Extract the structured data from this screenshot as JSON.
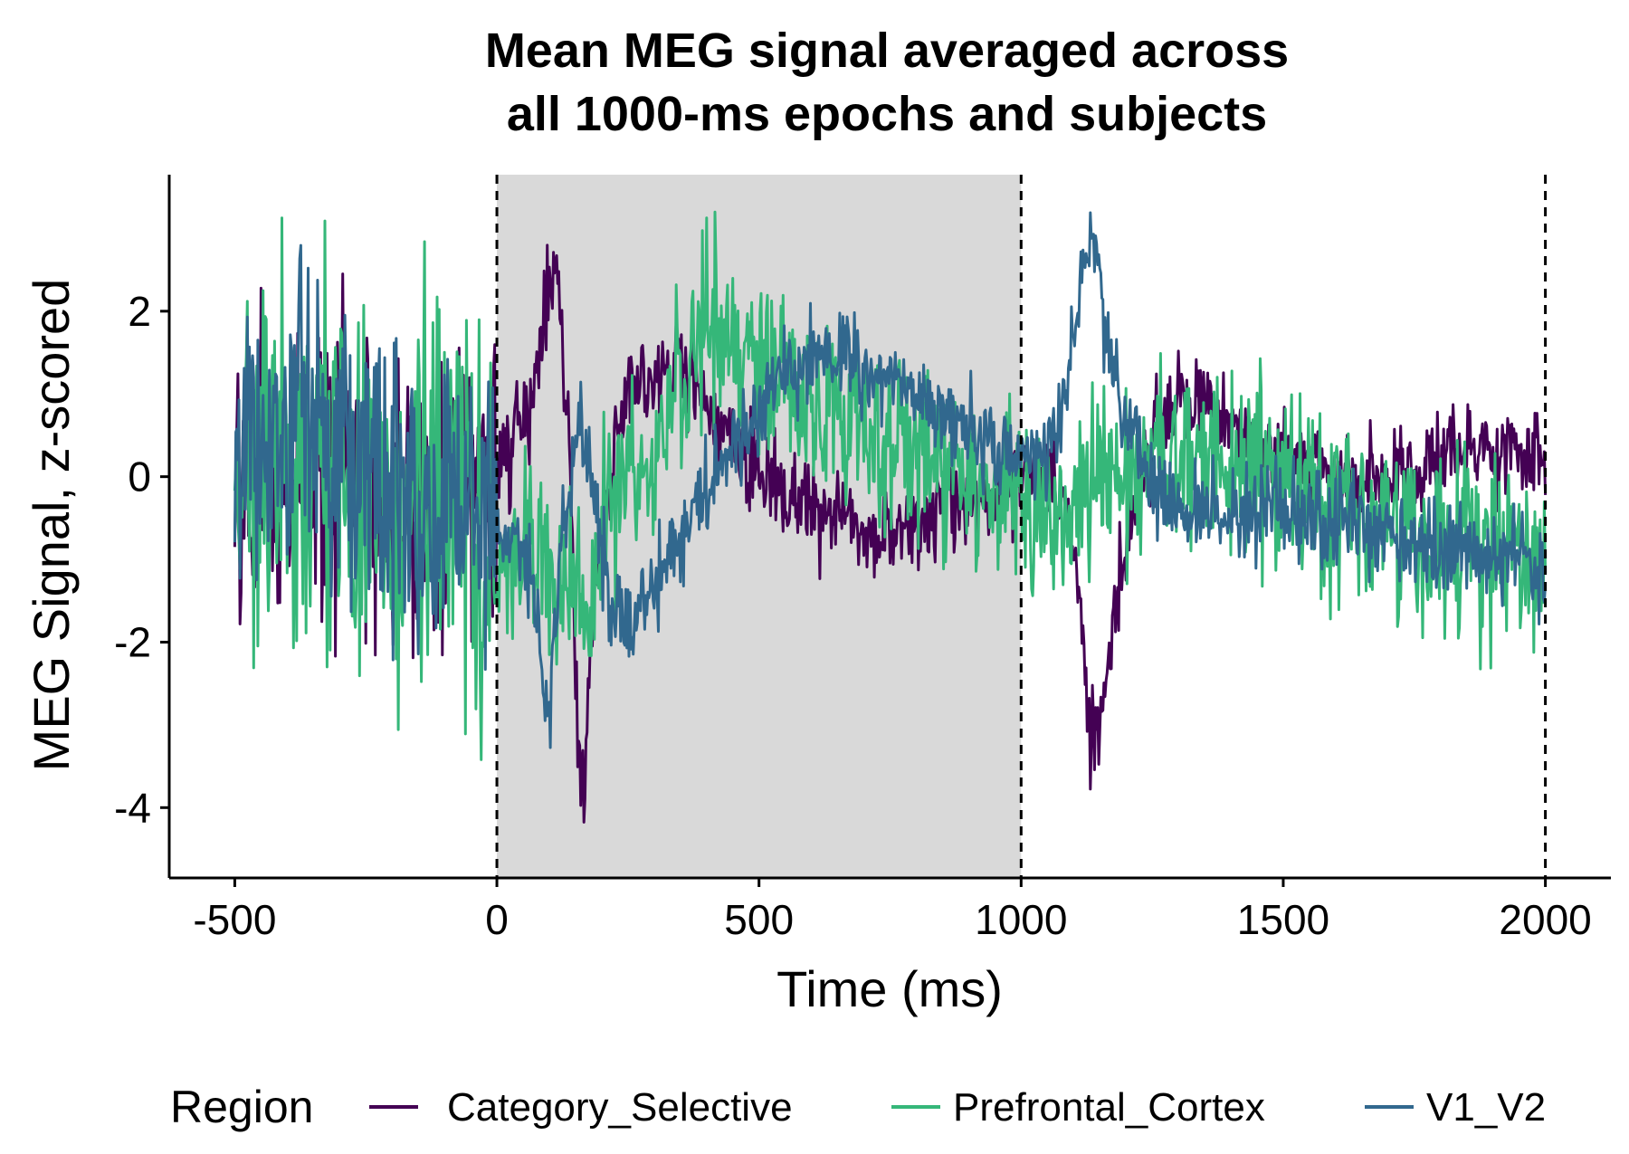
{
  "chart_data": {
    "type": "line",
    "title_lines": [
      "Mean MEG signal averaged across",
      "all 1000-ms epochs and subjects"
    ],
    "xlabel": "Time (ms)",
    "ylabel": "MEG Signal, z-scored",
    "xlim": [
      -625,
      2125
    ],
    "ylim": [
      -4.85,
      3.65
    ],
    "x_ticks": [
      -500,
      0,
      500,
      1000,
      1500,
      2000
    ],
    "x_tick_labels": [
      "-500",
      "0",
      "500",
      "1000",
      "1500",
      "2000"
    ],
    "y_ticks": [
      -4,
      -2,
      0,
      2
    ],
    "y_tick_labels": [
      "-4",
      "-2",
      "0",
      "2"
    ],
    "shaded_region": {
      "x": [
        0,
        1000
      ],
      "color": "#d9d9d9"
    },
    "vlines": [
      0,
      1000,
      2000
    ],
    "grid": false,
    "legend": {
      "title": "Region",
      "position": "bottom",
      "entries": [
        "Category_Selective",
        "Prefrontal_Cortex",
        "V1_V2"
      ]
    },
    "series": [
      {
        "name": "Category_Selective",
        "color": "#440154",
        "noise": 0.28,
        "anchors": [
          [
            -500,
            -0.1
          ],
          [
            -400,
            0.2
          ],
          [
            -200,
            -0.3
          ],
          [
            -100,
            -0.5
          ],
          [
            -10,
            0.1
          ],
          [
            20,
            0.2
          ],
          [
            60,
            0.8
          ],
          [
            100,
            2.2
          ],
          [
            115,
            2.5
          ],
          [
            140,
            0.2
          ],
          [
            155,
            -3.4
          ],
          [
            165,
            -3.6
          ],
          [
            185,
            -1.5
          ],
          [
            210,
            -0.2
          ],
          [
            250,
            1.0
          ],
          [
            300,
            1.2
          ],
          [
            350,
            1.3
          ],
          [
            400,
            0.8
          ],
          [
            450,
            0.4
          ],
          [
            500,
            0.0
          ],
          [
            550,
            -0.3
          ],
          [
            600,
            -0.4
          ],
          [
            700,
            -0.6
          ],
          [
            800,
            -0.6
          ],
          [
            900,
            -0.3
          ],
          [
            950,
            -0.2
          ],
          [
            1000,
            -0.1
          ],
          [
            1050,
            0.0
          ],
          [
            1080,
            -0.2
          ],
          [
            1110,
            -1.5
          ],
          [
            1130,
            -3.0
          ],
          [
            1145,
            -3.2
          ],
          [
            1170,
            -1.8
          ],
          [
            1200,
            -0.8
          ],
          [
            1230,
            0.0
          ],
          [
            1260,
            0.6
          ],
          [
            1300,
            0.9
          ],
          [
            1350,
            0.9
          ],
          [
            1400,
            0.6
          ],
          [
            1500,
            0.3
          ],
          [
            1600,
            0.0
          ],
          [
            1650,
            -0.1
          ],
          [
            1700,
            0.1
          ],
          [
            1800,
            0.2
          ],
          [
            1900,
            0.3
          ],
          [
            2000,
            0.3
          ]
        ]
      },
      {
        "name": "Prefrontal_Cortex",
        "color": "#35b779",
        "noise": 0.55,
        "anchors": [
          [
            -500,
            0.0
          ],
          [
            -400,
            0.1
          ],
          [
            -200,
            -0.2
          ],
          [
            -100,
            -0.3
          ],
          [
            -10,
            -0.8
          ],
          [
            10,
            -1.2
          ],
          [
            60,
            -0.6
          ],
          [
            120,
            -1.2
          ],
          [
            170,
            -1.6
          ],
          [
            220,
            -0.3
          ],
          [
            300,
            0.3
          ],
          [
            350,
            1.3
          ],
          [
            400,
            1.8
          ],
          [
            450,
            1.7
          ],
          [
            500,
            1.4
          ],
          [
            550,
            1.1
          ],
          [
            600,
            0.9
          ],
          [
            700,
            0.6
          ],
          [
            800,
            0.4
          ],
          [
            900,
            -0.1
          ],
          [
            1000,
            -0.3
          ],
          [
            1050,
            -0.6
          ],
          [
            1100,
            -0.5
          ],
          [
            1150,
            0.1
          ],
          [
            1250,
            0.2
          ],
          [
            1400,
            0.2
          ],
          [
            1500,
            -0.2
          ],
          [
            1600,
            -0.5
          ],
          [
            1700,
            -0.6
          ],
          [
            1800,
            -0.8
          ],
          [
            1900,
            -0.9
          ],
          [
            2000,
            -1.0
          ]
        ]
      },
      {
        "name": "V1_V2",
        "color": "#31688e",
        "noise": 0.28,
        "anchors": [
          [
            -500,
            0.5
          ],
          [
            -400,
            0.7
          ],
          [
            -300,
            0.3
          ],
          [
            -200,
            0.0
          ],
          [
            -100,
            -0.4
          ],
          [
            -10,
            -0.6
          ],
          [
            20,
            -0.7
          ],
          [
            60,
            -1.0
          ],
          [
            90,
            -2.6
          ],
          [
            100,
            -2.9
          ],
          [
            120,
            -1.0
          ],
          [
            150,
            0.5
          ],
          [
            165,
            0.6
          ],
          [
            185,
            -0.3
          ],
          [
            220,
            -1.6
          ],
          [
            250,
            -1.9
          ],
          [
            300,
            -1.4
          ],
          [
            350,
            -0.7
          ],
          [
            400,
            -0.1
          ],
          [
            450,
            0.4
          ],
          [
            500,
            0.9
          ],
          [
            550,
            1.3
          ],
          [
            600,
            1.5
          ],
          [
            650,
            1.4
          ],
          [
            700,
            1.2
          ],
          [
            800,
            1.0
          ],
          [
            850,
            0.8
          ],
          [
            900,
            0.5
          ],
          [
            1000,
            0.3
          ],
          [
            1040,
            0.2
          ],
          [
            1080,
            0.8
          ],
          [
            1110,
            2.0
          ],
          [
            1130,
            2.9
          ],
          [
            1145,
            2.7
          ],
          [
            1170,
            1.2
          ],
          [
            1200,
            0.8
          ],
          [
            1230,
            0.5
          ],
          [
            1250,
            0.0
          ],
          [
            1300,
            -0.4
          ],
          [
            1400,
            -0.4
          ],
          [
            1500,
            -0.4
          ],
          [
            1600,
            -0.5
          ],
          [
            1700,
            -0.7
          ],
          [
            1800,
            -0.9
          ],
          [
            1900,
            -1.0
          ],
          [
            2000,
            -1.1
          ]
        ]
      }
    ]
  }
}
